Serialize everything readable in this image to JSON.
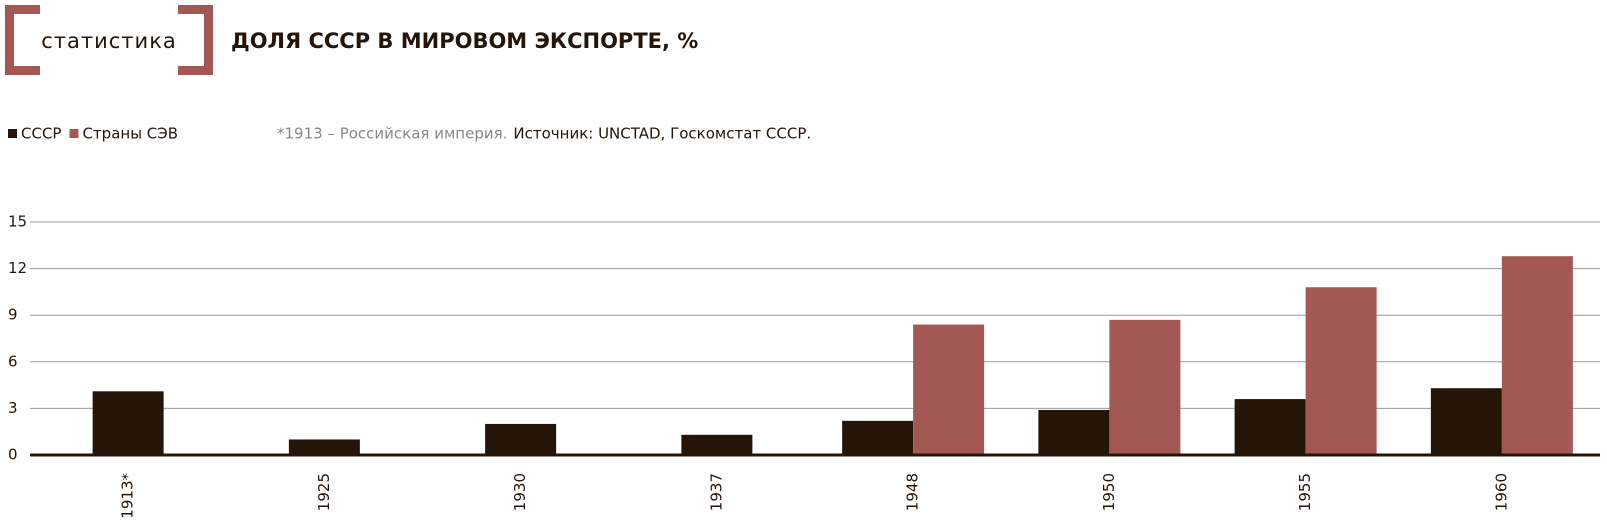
{
  "brand": "статистика",
  "chart_data": {
    "type": "bar",
    "title": "ДОЛЯ СССР В МИРОВОМ ЭКСПОРТЕ, %",
    "note": "*1913 – Российская империя.",
    "source": "Источник: UNCTAD, Госкомстат СССР.",
    "categories": [
      "1913*",
      "1925",
      "1930",
      "1937",
      "1948",
      "1950",
      "1955",
      "1960"
    ],
    "series": [
      {
        "name": "СССР",
        "color": "#251509",
        "values": [
          4.1,
          1.0,
          2.0,
          1.3,
          2.2,
          2.9,
          3.6,
          4.3
        ]
      },
      {
        "name": "Страны СЭВ",
        "color": "#a35853",
        "values": [
          null,
          null,
          null,
          null,
          8.4,
          8.7,
          10.8,
          12.8
        ]
      }
    ],
    "ylim": [
      0,
      15
    ],
    "yticks": [
      0,
      3,
      6,
      9,
      12,
      15
    ],
    "grid": true
  }
}
